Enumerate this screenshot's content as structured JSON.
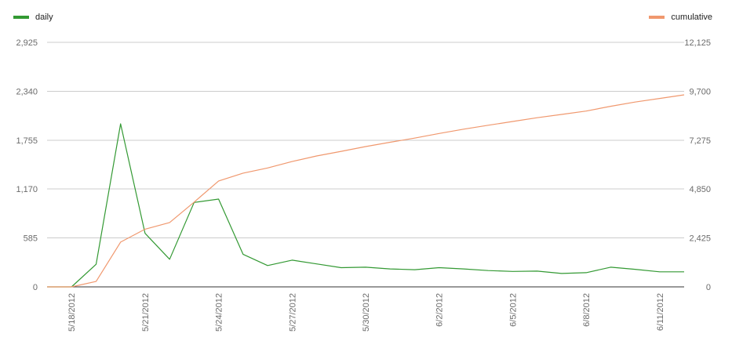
{
  "chart_data": {
    "type": "line",
    "title": "",
    "xlabel": "",
    "ylabel": "",
    "legend_position": "top",
    "x": [
      "5/17/2012",
      "5/18/2012",
      "5/19/2012",
      "5/20/2012",
      "5/21/2012",
      "5/22/2012",
      "5/23/2012",
      "5/24/2012",
      "5/25/2012",
      "5/26/2012",
      "5/27/2012",
      "5/28/2012",
      "5/29/2012",
      "5/30/2012",
      "5/31/2012",
      "6/1/2012",
      "6/2/2012",
      "6/3/2012",
      "6/4/2012",
      "6/5/2012",
      "6/6/2012",
      "6/7/2012",
      "6/8/2012",
      "6/9/2012",
      "6/10/2012",
      "6/11/2012",
      "6/12/2012"
    ],
    "x_tick_labels": [
      "5/18/2012",
      "5/21/2012",
      "5/24/2012",
      "5/27/2012",
      "5/30/2012",
      "6/2/2012",
      "6/5/2012",
      "6/8/2012",
      "6/11/2012"
    ],
    "left_axis": {
      "min": 0,
      "max": 2925,
      "ticks": [
        "0",
        "585",
        "1,170",
        "1,755",
        "2,340",
        "2,925"
      ]
    },
    "right_axis": {
      "min": 0,
      "max": 12125,
      "ticks": [
        "0",
        "2,425",
        "4,850",
        "7,275",
        "9,700",
        "12,125"
      ]
    },
    "gridlines": true,
    "series": [
      {
        "name": "daily",
        "axis": "left",
        "color": "#339933",
        "values": [
          0,
          0,
          270,
          1950,
          640,
          330,
          1010,
          1050,
          390,
          255,
          320,
          275,
          230,
          235,
          215,
          205,
          230,
          215,
          195,
          185,
          188,
          160,
          170,
          235,
          210,
          180,
          180
        ]
      },
      {
        "name": "cumulative",
        "axis": "right",
        "color": "#f0986e",
        "values": [
          0,
          0,
          270,
          2220,
          2860,
          3190,
          4200,
          5250,
          5640,
          5895,
          6215,
          6490,
          6720,
          6955,
          7170,
          7375,
          7605,
          7820,
          8015,
          8200,
          8388,
          8548,
          8718,
          8953,
          9163,
          9343,
          9523
        ]
      }
    ]
  }
}
